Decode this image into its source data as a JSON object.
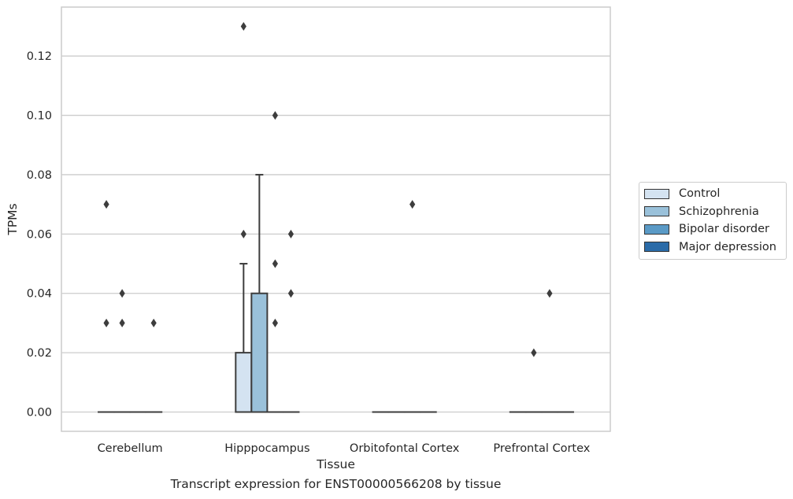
{
  "chart_data": {
    "type": "box",
    "xlabel": "Tissue",
    "ylabel": "TPMs",
    "caption": "Transcript expression for ENST00000566208 by tissue",
    "ylim": [
      -0.0065,
      0.1365
    ],
    "yticks": [
      0.0,
      0.02,
      0.04,
      0.06,
      0.08,
      0.1,
      0.12
    ],
    "ytick_labels": [
      "0.00",
      "0.02",
      "0.04",
      "0.06",
      "0.08",
      "0.10",
      "0.12"
    ],
    "categories": [
      "Cerebellum",
      "Hipppocampus",
      "Orbitofontal Cortex",
      "Prefrontal Cortex"
    ],
    "grid": "horizontal",
    "legend_position": "right",
    "series": [
      {
        "name": "Control",
        "color": "#d4e3f1",
        "boxes": [
          {
            "q1": 0,
            "median": 0,
            "q3": 0,
            "whislo": 0,
            "whishi": 0,
            "fliers": [
              0.07,
              0.03
            ]
          },
          {
            "q1": 0,
            "median": 0,
            "q3": 0.02,
            "whislo": 0,
            "whishi": 0.05,
            "fliers": [
              0.13,
              0.06
            ]
          },
          {
            "q1": 0,
            "median": 0,
            "q3": 0,
            "whislo": 0,
            "whishi": 0,
            "fliers": []
          },
          {
            "q1": 0,
            "median": 0,
            "q3": 0,
            "whislo": 0,
            "whishi": 0,
            "fliers": []
          }
        ]
      },
      {
        "name": "Schizophrenia",
        "color": "#9ac1da",
        "boxes": [
          {
            "q1": 0,
            "median": 0,
            "q3": 0,
            "whislo": 0,
            "whishi": 0,
            "fliers": [
              0.04,
              0.03
            ]
          },
          {
            "q1": 0,
            "median": 0,
            "q3": 0.04,
            "whislo": 0,
            "whishi": 0.08,
            "fliers": []
          },
          {
            "q1": 0,
            "median": 0,
            "q3": 0,
            "whislo": 0,
            "whishi": 0,
            "fliers": []
          },
          {
            "q1": 0,
            "median": 0,
            "q3": 0,
            "whislo": 0,
            "whishi": 0,
            "fliers": [
              0.02
            ]
          }
        ]
      },
      {
        "name": "Bipolar disorder",
        "color": "#5a9ac6",
        "boxes": [
          {
            "q1": 0,
            "median": 0,
            "q3": 0,
            "whislo": 0,
            "whishi": 0,
            "fliers": []
          },
          {
            "q1": 0,
            "median": 0,
            "q3": 0,
            "whislo": 0,
            "whishi": 0,
            "fliers": [
              0.1,
              0.05,
              0.03
            ]
          },
          {
            "q1": 0,
            "median": 0,
            "q3": 0,
            "whislo": 0,
            "whishi": 0,
            "fliers": [
              0.07
            ]
          },
          {
            "q1": 0,
            "median": 0,
            "q3": 0,
            "whislo": 0,
            "whishi": 0,
            "fliers": [
              0.04
            ]
          }
        ]
      },
      {
        "name": "Major depression",
        "color": "#2a6ba8",
        "boxes": [
          {
            "q1": 0,
            "median": 0,
            "q3": 0,
            "whislo": 0,
            "whishi": 0,
            "fliers": [
              0.03
            ]
          },
          {
            "q1": 0,
            "median": 0,
            "q3": 0,
            "whislo": 0,
            "whishi": 0,
            "fliers": [
              0.06,
              0.04
            ]
          },
          {
            "q1": 0,
            "median": 0,
            "q3": 0,
            "whislo": 0,
            "whishi": 0,
            "fliers": []
          },
          {
            "q1": 0,
            "median": 0,
            "q3": 0,
            "whislo": 0,
            "whishi": 0,
            "fliers": []
          }
        ]
      }
    ]
  }
}
